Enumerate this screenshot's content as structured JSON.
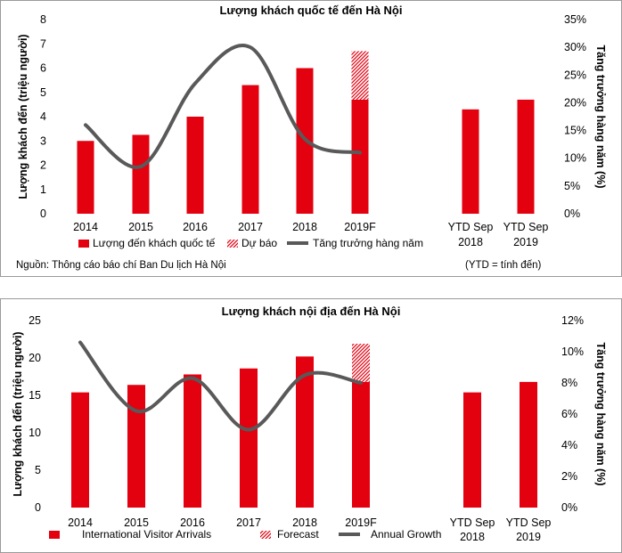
{
  "charts": [
    {
      "title": "Lượng khách quốc tế đến Hà Nội",
      "ylabel_left": "Lượng khách đến (triệu người)",
      "ylabel_right": "Tăng trưởng hàng năm (%)",
      "legend": [
        "Lượng đến khách quốc tế",
        "Dự báo",
        "Tăng trưởng hàng năm"
      ]
    },
    {
      "title": "Lượng khách nội địa đến Hà Nội",
      "ylabel_left": "Lượng khách đến (triệu người)",
      "ylabel_right": "Tăng trưởng hàng năm (%)",
      "legend": [
        "International Visitor Arrivals",
        "Forecast",
        "Annual Growth"
      ]
    }
  ],
  "source": {
    "left": "Nguồn: Thông cáo báo chí Ban Du lịch Hà Nội",
    "right": "(YTD = tính đến)"
  },
  "chart_data": [
    {
      "type": "bar",
      "title": "Lượng khách quốc tế đến Hà Nội",
      "categories": [
        "2014",
        "2015",
        "2016",
        "2017",
        "2018",
        "2019F",
        "YTD Sep 2018",
        "YTD Sep 2019"
      ],
      "ylabel": "Lượng khách đến (triệu người)",
      "y2label": "Tăng trưởng hàng năm (%)",
      "ylim": [
        0,
        8
      ],
      "y2lim": [
        0,
        35
      ],
      "yticks": [
        "0",
        "1",
        "2",
        "3",
        "4",
        "5",
        "6",
        "7",
        "8"
      ],
      "y2ticks": [
        "0%",
        "5%",
        "10%",
        "15%",
        "20%",
        "25%",
        "30%",
        "35%"
      ],
      "series": [
        {
          "name": "Lượng đến khách quốc tế",
          "type": "bar",
          "color": "#e3000f",
          "values": [
            3.0,
            3.25,
            4.0,
            5.3,
            6.0,
            4.7,
            4.3,
            4.7
          ]
        },
        {
          "name": "Dự báo",
          "type": "bar-hatched",
          "color": "#e3000f",
          "values": [
            null,
            null,
            null,
            null,
            null,
            2.0,
            null,
            null
          ]
        },
        {
          "name": "Tăng trưởng hàng năm",
          "type": "line",
          "axis": "right",
          "color": "#595959",
          "values": [
            16,
            8.5,
            23.5,
            30,
            13.5,
            11,
            null,
            null
          ]
        }
      ],
      "legend_position": "bottom"
    },
    {
      "type": "bar",
      "title": "Lượng khách nội địa đến Hà Nội",
      "categories": [
        "2014",
        "2015",
        "2016",
        "2017",
        "2018",
        "2019F",
        "YTD Sep 2018",
        "YTD Sep 2019"
      ],
      "ylabel": "Lượng khách đến (triệu người)",
      "y2label": "Tăng trưởng hàng năm (%)",
      "ylim": [
        0,
        25
      ],
      "y2lim": [
        0,
        12
      ],
      "yticks": [
        "0",
        "5",
        "10",
        "15",
        "20",
        "25"
      ],
      "y2ticks": [
        "0%",
        "2%",
        "4%",
        "6%",
        "8%",
        "10%",
        "12%"
      ],
      "series": [
        {
          "name": "International Visitor Arrivals",
          "type": "bar",
          "color": "#e3000f",
          "values": [
            15.4,
            16.4,
            17.8,
            18.6,
            20.2,
            16.8,
            15.4,
            16.8
          ]
        },
        {
          "name": "Forecast",
          "type": "bar-hatched",
          "color": "#e3000f",
          "values": [
            null,
            null,
            null,
            null,
            null,
            5.1,
            null,
            null
          ]
        },
        {
          "name": "Annual Growth",
          "type": "line",
          "axis": "right",
          "color": "#595959",
          "values": [
            10.6,
            6.2,
            8.3,
            5.0,
            8.5,
            8.0,
            null,
            null
          ]
        }
      ],
      "legend_position": "bottom"
    }
  ]
}
